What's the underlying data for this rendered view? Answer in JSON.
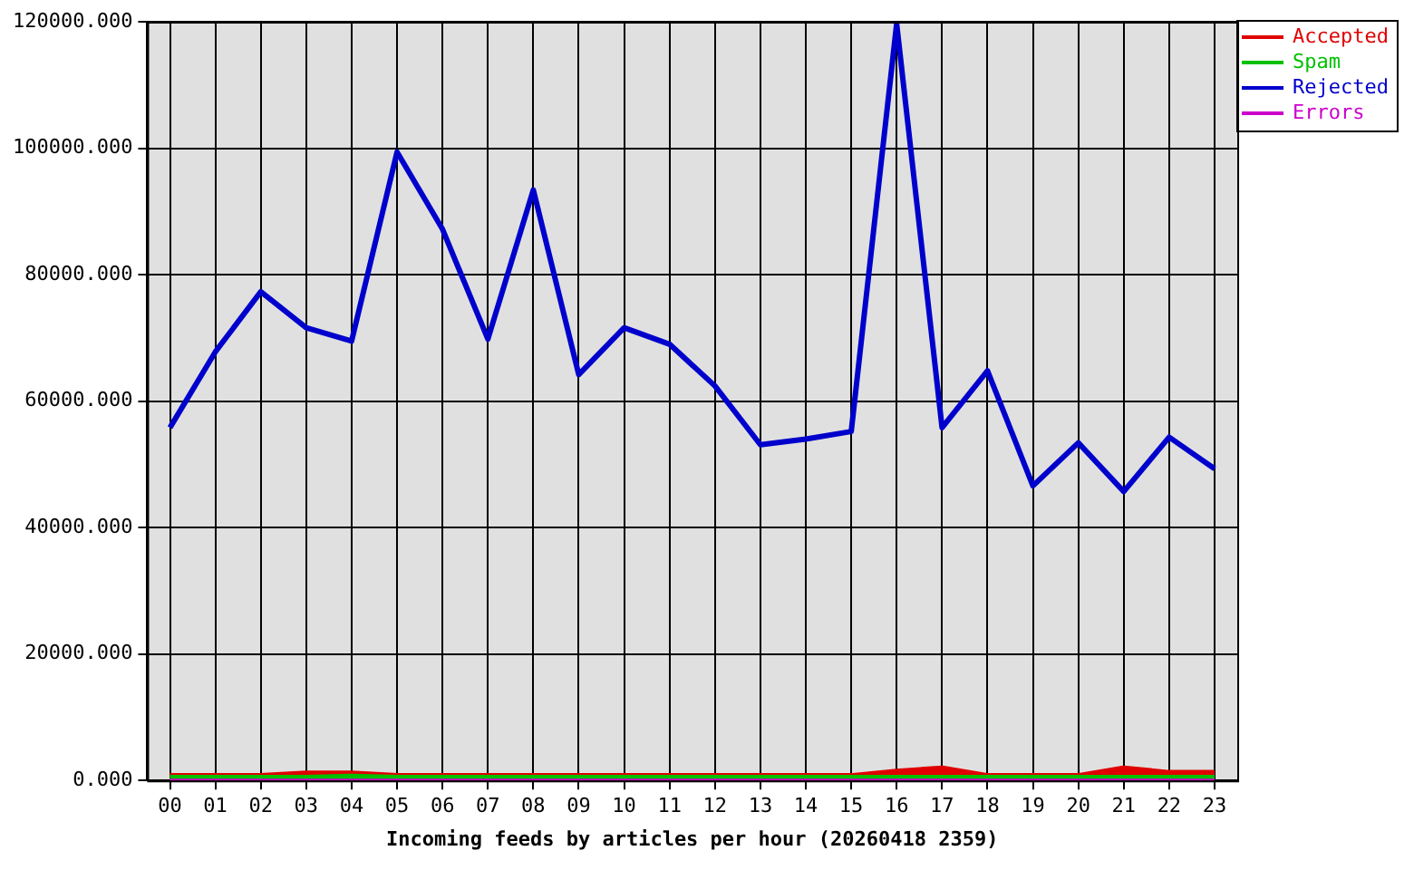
{
  "chart_data": {
    "type": "line",
    "xlabel": "Incoming feeds by articles per hour (20260418 2359)",
    "categories": [
      "00",
      "01",
      "02",
      "03",
      "04",
      "05",
      "06",
      "07",
      "08",
      "09",
      "10",
      "11",
      "12",
      "13",
      "14",
      "15",
      "16",
      "17",
      "18",
      "19",
      "20",
      "21",
      "22",
      "23"
    ],
    "series": [
      {
        "name": "Accepted",
        "color": "#e00000",
        "values": [
          300,
          300,
          300,
          700,
          700,
          300,
          300,
          300,
          300,
          300,
          300,
          300,
          300,
          300,
          300,
          300,
          1000,
          1500,
          300,
          300,
          300,
          1500,
          800,
          800
        ]
      },
      {
        "name": "Spam",
        "color": "#00c000",
        "values": [
          300,
          300,
          300,
          300,
          500,
          300,
          300,
          300,
          300,
          300,
          300,
          300,
          300,
          300,
          300,
          300,
          300,
          300,
          300,
          300,
          300,
          300,
          300,
          300
        ]
      },
      {
        "name": "Rejected",
        "color": "#0000cc",
        "values": [
          55800,
          67800,
          77300,
          71600,
          69500,
          99400,
          87200,
          69800,
          93400,
          64200,
          71600,
          69000,
          62400,
          53100,
          54000,
          55200,
          119700,
          55800,
          64800,
          46600,
          53400,
          45700,
          54300,
          49300
        ]
      },
      {
        "name": "Errors",
        "color": "#cc00cc",
        "values": [
          0,
          0,
          0,
          0,
          0,
          0,
          0,
          0,
          0,
          0,
          0,
          0,
          0,
          0,
          0,
          0,
          0,
          0,
          0,
          0,
          0,
          0,
          0,
          0
        ]
      }
    ],
    "ylim": [
      0,
      120000
    ],
    "yticks": [
      {
        "value": 0,
        "label": "0.000"
      },
      {
        "value": 20000,
        "label": "20000.000"
      },
      {
        "value": 40000,
        "label": "40000.000"
      },
      {
        "value": 60000,
        "label": "60000.000"
      },
      {
        "value": 80000,
        "label": "80000.000"
      },
      {
        "value": 100000,
        "label": "100000.000"
      },
      {
        "value": 120000,
        "label": "120000.000"
      }
    ],
    "grid": true,
    "legend": "right",
    "marker": "none",
    "line_style": "solid"
  }
}
